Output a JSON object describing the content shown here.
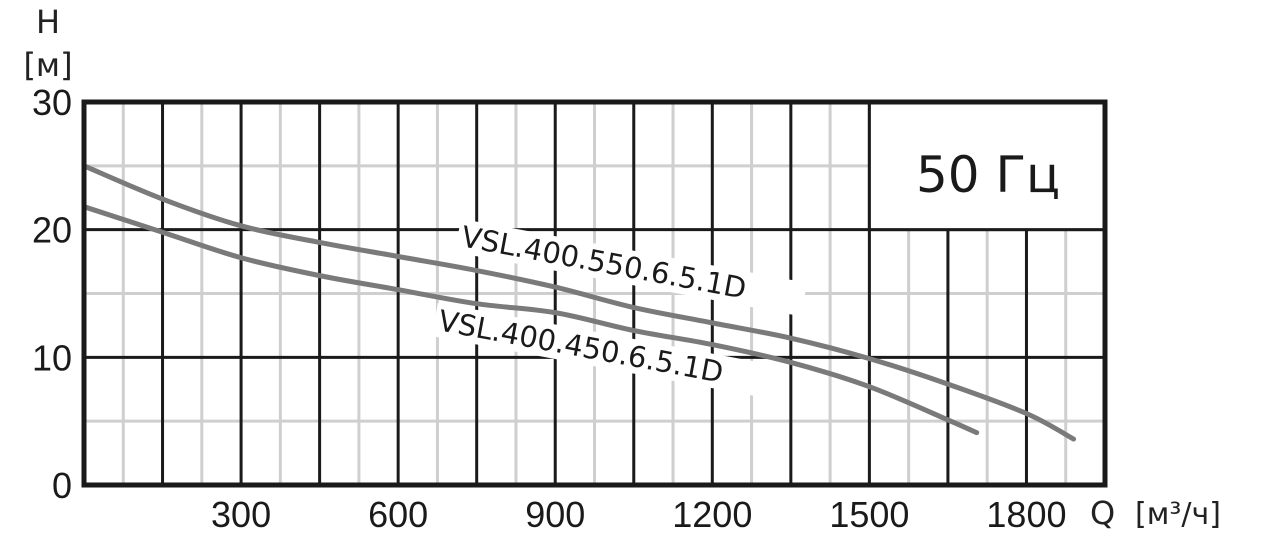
{
  "chart_data": {
    "type": "line",
    "title": "",
    "annotation": "50 Гц",
    "xlabel": "Q [м³/ч]",
    "ylabel": "H [м]",
    "xlim": [
      0,
      1950
    ],
    "ylim": [
      0,
      30
    ],
    "x_ticks": [
      300,
      600,
      900,
      1200,
      1500,
      1800
    ],
    "y_ticks": [
      0,
      10,
      20,
      30
    ],
    "x_major_grid_step": 150,
    "x_minor_grid_step": 75,
    "y_major_grid_step": 10,
    "y_minor_grid_step": 5,
    "grid": true,
    "legend": "inline labels on curves",
    "series": [
      {
        "name": "VSL.400.550.6.5.1D",
        "color": "#7a7a7a",
        "x": [
          0,
          150,
          300,
          450,
          600,
          750,
          900,
          1050,
          1200,
          1350,
          1500,
          1650,
          1800,
          1890
        ],
        "y": [
          25.0,
          22.4,
          20.3,
          19.0,
          17.9,
          16.8,
          15.5,
          13.9,
          12.7,
          11.5,
          9.9,
          7.9,
          5.6,
          3.6
        ]
      },
      {
        "name": "VSL.400.450.6.5.1D",
        "color": "#7a7a7a",
        "x": [
          0,
          150,
          300,
          450,
          600,
          750,
          900,
          1050,
          1200,
          1350,
          1500,
          1650,
          1705
        ],
        "y": [
          21.8,
          19.8,
          17.8,
          16.4,
          15.3,
          14.2,
          13.5,
          12.1,
          11.0,
          9.6,
          7.7,
          5.1,
          4.1
        ]
      }
    ]
  },
  "labels": {
    "y_axis_symbol": "H",
    "y_axis_unit": "[м]",
    "x_axis_symbol": "Q",
    "x_axis_unit": "[м³/ч]",
    "frequency": "50 Гц"
  }
}
